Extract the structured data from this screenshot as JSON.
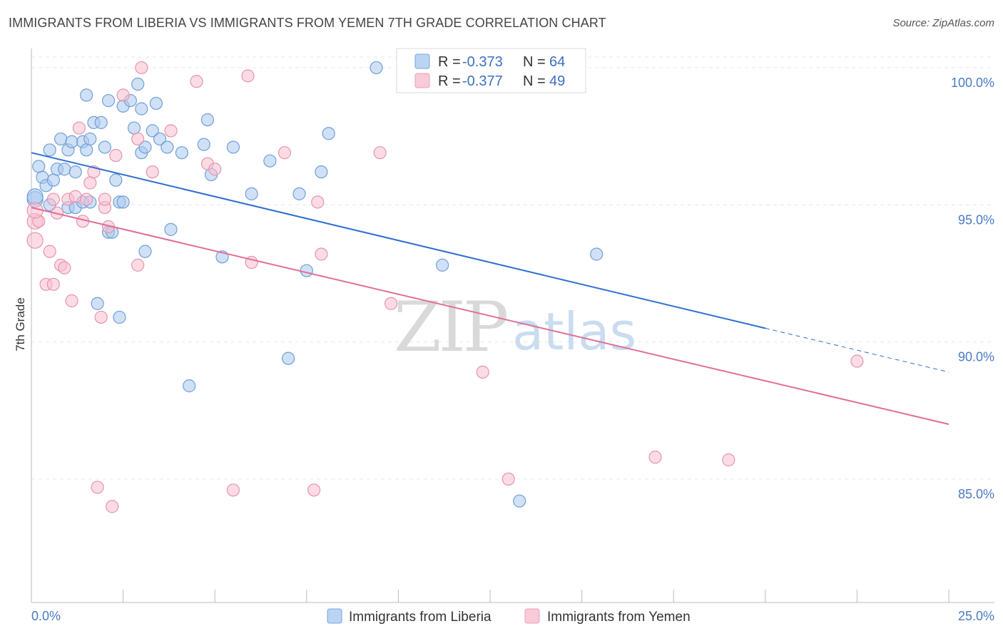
{
  "title": "IMMIGRANTS FROM LIBERIA VS IMMIGRANTS FROM YEMEN 7TH GRADE CORRELATION CHART",
  "source": "Source: ZipAtlas.com",
  "watermark": {
    "zip": "ZIP",
    "atlas": "atlas"
  },
  "legend": {
    "r_label": "R =",
    "n_label": "N =",
    "rows": [
      {
        "r": "-0.373",
        "n": "64"
      },
      {
        "r": "-0.377",
        "n": "49"
      }
    ]
  },
  "chart_data": {
    "type": "scatter",
    "ylabel": "7th Grade",
    "xlim": [
      0,
      25
    ],
    "ylim": [
      80.5,
      100.7
    ],
    "x_tick_labels": [
      {
        "value": 0,
        "label": "0.0%"
      },
      {
        "value": 25,
        "label": "25.0%"
      }
    ],
    "y_tick_labels": [
      {
        "value": 100,
        "label": "100.0%"
      },
      {
        "value": 95,
        "label": "95.0%"
      },
      {
        "value": 90,
        "label": "90.0%"
      },
      {
        "value": 85,
        "label": "85.0%"
      }
    ],
    "x_minor_ticks": [
      0,
      2.5,
      5,
      7.5,
      10,
      12.5,
      15,
      17.5,
      20,
      22.5,
      25
    ],
    "grid": true,
    "legend_position": "top-center",
    "series": [
      {
        "name": "Immigrants from Liberia",
        "color": "#a9c8ef",
        "edge": "#6f9fd8",
        "trend": {
          "x0": 0,
          "y0": 96.9,
          "x1": 20,
          "y1": 90.5,
          "x_dashed_end": 25,
          "y_dashed_end": 88.9,
          "color": "#2e6fd0"
        },
        "points": [
          [
            0.1,
            95.2
          ],
          [
            0.2,
            96.4
          ],
          [
            0.3,
            96.0
          ],
          [
            0.4,
            95.7
          ],
          [
            0.5,
            97.0
          ],
          [
            0.5,
            95.0
          ],
          [
            0.6,
            95.9
          ],
          [
            0.7,
            96.3
          ],
          [
            0.8,
            97.4
          ],
          [
            0.9,
            96.3
          ],
          [
            1.0,
            97.0
          ],
          [
            1.0,
            94.9
          ],
          [
            1.1,
            97.3
          ],
          [
            1.2,
            96.2
          ],
          [
            1.2,
            94.9
          ],
          [
            1.4,
            97.3
          ],
          [
            1.4,
            95.1
          ],
          [
            1.5,
            97.0
          ],
          [
            1.6,
            97.4
          ],
          [
            1.6,
            95.1
          ],
          [
            1.5,
            99.0
          ],
          [
            1.7,
            98.0
          ],
          [
            1.8,
            91.4
          ],
          [
            1.9,
            98.0
          ],
          [
            2.0,
            97.1
          ],
          [
            2.1,
            98.8
          ],
          [
            2.1,
            94.0
          ],
          [
            2.2,
            94.0
          ],
          [
            2.3,
            95.9
          ],
          [
            2.4,
            95.1
          ],
          [
            2.4,
            90.9
          ],
          [
            2.5,
            95.1
          ],
          [
            2.5,
            98.6
          ],
          [
            2.7,
            98.8
          ],
          [
            2.8,
            97.8
          ],
          [
            2.9,
            99.4
          ],
          [
            3.0,
            98.5
          ],
          [
            3.0,
            96.9
          ],
          [
            3.1,
            97.1
          ],
          [
            3.1,
            93.3
          ],
          [
            3.3,
            97.7
          ],
          [
            3.4,
            98.7
          ],
          [
            3.5,
            97.4
          ],
          [
            3.7,
            97.1
          ],
          [
            3.8,
            94.1
          ],
          [
            4.1,
            96.9
          ],
          [
            4.3,
            88.4
          ],
          [
            4.7,
            97.2
          ],
          [
            4.8,
            98.1
          ],
          [
            4.9,
            96.1
          ],
          [
            5.2,
            93.1
          ],
          [
            5.5,
            97.1
          ],
          [
            6.0,
            95.4
          ],
          [
            6.5,
            96.6
          ],
          [
            7.0,
            89.4
          ],
          [
            7.3,
            95.4
          ],
          [
            7.5,
            92.6
          ],
          [
            7.9,
            96.2
          ],
          [
            8.1,
            97.6
          ],
          [
            9.4,
            100.0
          ],
          [
            11.2,
            92.8
          ],
          [
            13.3,
            84.2
          ],
          [
            15.4,
            93.2
          ],
          [
            0.1,
            95.3
          ]
        ]
      },
      {
        "name": "Immigrants from Yemen",
        "color": "#f7bfd0",
        "edge": "#e893ae",
        "trend": {
          "x0": 0,
          "y0": 94.9,
          "x1": 25,
          "y1": 87.0,
          "color": "#e06e96"
        },
        "points": [
          [
            0.1,
            94.4
          ],
          [
            0.1,
            93.7
          ],
          [
            0.2,
            94.4
          ],
          [
            0.4,
            92.1
          ],
          [
            0.5,
            93.3
          ],
          [
            0.6,
            92.1
          ],
          [
            0.7,
            94.7
          ],
          [
            0.8,
            92.8
          ],
          [
            0.9,
            92.7
          ],
          [
            1.0,
            95.2
          ],
          [
            1.1,
            91.5
          ],
          [
            1.2,
            95.3
          ],
          [
            1.3,
            97.8
          ],
          [
            1.4,
            94.4
          ],
          [
            1.5,
            95.2
          ],
          [
            1.6,
            95.8
          ],
          [
            1.7,
            96.2
          ],
          [
            1.8,
            84.7
          ],
          [
            1.9,
            90.9
          ],
          [
            2.0,
            94.9
          ],
          [
            2.1,
            94.2
          ],
          [
            2.2,
            84.0
          ],
          [
            2.3,
            96.8
          ],
          [
            2.5,
            99.0
          ],
          [
            2.9,
            97.4
          ],
          [
            2.9,
            92.8
          ],
          [
            3.0,
            100.0
          ],
          [
            3.3,
            96.2
          ],
          [
            3.8,
            97.7
          ],
          [
            4.5,
            99.5
          ],
          [
            4.8,
            96.5
          ],
          [
            5.0,
            96.3
          ],
          [
            5.5,
            84.6
          ],
          [
            5.9,
            99.7
          ],
          [
            6.0,
            92.9
          ],
          [
            6.9,
            96.9
          ],
          [
            7.7,
            84.6
          ],
          [
            7.8,
            95.1
          ],
          [
            7.9,
            93.2
          ],
          [
            9.5,
            96.9
          ],
          [
            9.8,
            91.4
          ],
          [
            12.3,
            88.9
          ],
          [
            13.0,
            85.0
          ],
          [
            17.0,
            85.8
          ],
          [
            19.0,
            85.7
          ],
          [
            22.5,
            89.3
          ],
          [
            0.1,
            94.8
          ],
          [
            0.6,
            95.2
          ],
          [
            2.0,
            95.2
          ]
        ]
      }
    ]
  }
}
